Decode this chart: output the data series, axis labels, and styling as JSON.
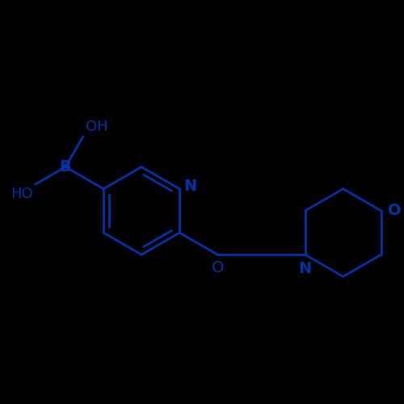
{
  "bond_color": "#0033AA",
  "bg_color": "#000000",
  "line_width": 2.0,
  "font_size": 14,
  "fig_size": [
    5.0,
    5.0
  ],
  "dpi": 100,
  "xlim": [
    -3.2,
    5.8
  ],
  "ylim": [
    -2.8,
    3.2
  ]
}
